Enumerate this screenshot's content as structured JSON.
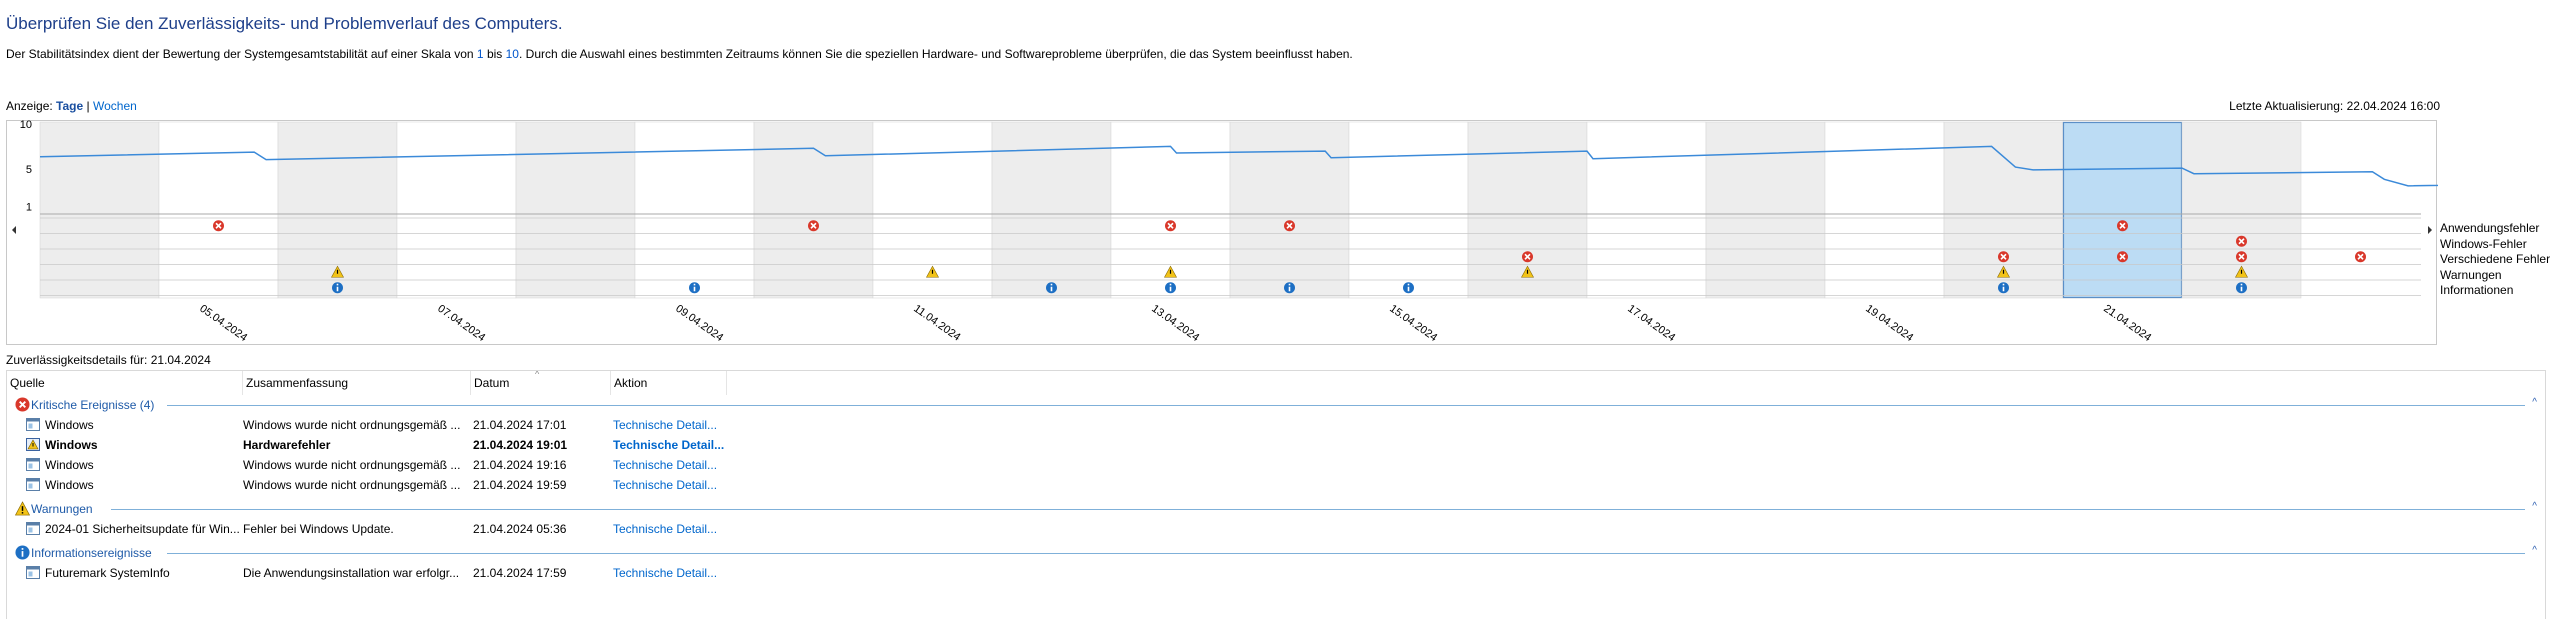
{
  "page": {
    "title": "Überprüfen Sie den Zuverlässigkeits- und Problemverlauf des Computers.",
    "description_before": "Der Stabilitätsindex dient der Bewertung der Systemgesamtstabilität auf einer Skala von ",
    "description_n1": "1",
    "description_mid": " bis ",
    "description_n2": "10",
    "description_after": ". Durch die Auswahl eines bestimmten Zeitraums können Sie die speziellen Hardware- und Softwareprobleme überprüfen, die das System beeinflusst haben.",
    "view_label": "Anzeige:",
    "view_days": "Tage",
    "view_sep": "|",
    "view_weeks": "Wochen",
    "last_update": "Letzte Aktualisierung: 22.04.2024 16:00"
  },
  "chart_data": {
    "type": "line",
    "title": "",
    "y_ticks": [
      "10",
      "5",
      "1"
    ],
    "ylim": [
      0,
      10
    ],
    "x_labels": [
      "05.04.2024",
      "07.04.2024",
      "09.04.2024",
      "11.04.2024",
      "13.04.2024",
      "15.04.2024",
      "17.04.2024",
      "19.04.2024",
      "21.04.2024"
    ],
    "days": [
      "04.04.2024",
      "05.04.2024",
      "06.04.2024",
      "07.04.2024",
      "08.04.2024",
      "09.04.2024",
      "10.04.2024",
      "11.04.2024",
      "12.04.2024",
      "13.04.2024",
      "14.04.2024",
      "15.04.2024",
      "16.04.2024",
      "17.04.2024",
      "18.04.2024",
      "19.04.2024",
      "20.04.2024",
      "21.04.2024",
      "22.04.2024"
    ],
    "selected_day": "21.04.2024",
    "series": [
      {
        "points": [
          [
            0,
            6.3
          ],
          [
            1.8,
            6.8
          ],
          [
            1.9,
            6.0
          ],
          [
            6.5,
            7.2
          ],
          [
            6.6,
            6.4
          ],
          [
            9.5,
            7.4
          ],
          [
            9.55,
            6.7
          ],
          [
            10.8,
            6.9
          ],
          [
            10.85,
            6.2
          ],
          [
            13.0,
            6.9
          ],
          [
            13.05,
            6.1
          ],
          [
            16.4,
            7.4
          ],
          [
            16.6,
            5.2
          ],
          [
            16.75,
            4.9
          ],
          [
            18.0,
            5.1
          ],
          [
            18.1,
            4.5
          ],
          [
            19.6,
            4.7
          ],
          [
            19.7,
            3.9
          ],
          [
            19.9,
            3.2
          ],
          [
            21.5,
            3.6
          ]
        ],
        "color": "#3b8ad9"
      }
    ],
    "categories": [
      "Anwendungsfehler",
      "Windows-Fehler",
      "Verschiedene Fehler",
      "Warnungen",
      "Informationen"
    ],
    "events": {
      "Anwendungsfehler": [
        1,
        6,
        9,
        10,
        17
      ],
      "Windows-Fehler": [
        18
      ],
      "Verschiedene Fehler": [
        12,
        16,
        17,
        18,
        19
      ],
      "Warnungen": [
        2,
        7,
        9,
        12,
        16,
        18
      ],
      "Informationen": [
        2,
        5,
        8,
        9,
        10,
        11,
        16,
        18
      ]
    }
  },
  "details": {
    "title": "Zuverlässigkeitsdetails für: 21.04.2024",
    "columns": [
      "Quelle",
      "Zusammenfassung",
      "Datum",
      "Aktion"
    ],
    "groups": [
      {
        "title": "Kritische Ereignisse (4)",
        "icon": "error-icon",
        "rows": [
          {
            "source": "Windows",
            "summary": "Windows wurde nicht ordnungsgemäß ...",
            "date": "21.04.2024 17:01",
            "action": "Technische Detail...",
            "bold": false
          },
          {
            "source": "Windows",
            "summary": "Hardwarefehler",
            "date": "21.04.2024 19:01",
            "action": "Technische Detail...",
            "bold": true
          },
          {
            "source": "Windows",
            "summary": "Windows wurde nicht ordnungsgemäß ...",
            "date": "21.04.2024 19:16",
            "action": "Technische Detail...",
            "bold": false
          },
          {
            "source": "Windows",
            "summary": "Windows wurde nicht ordnungsgemäß ...",
            "date": "21.04.2024 19:59",
            "action": "Technische Detail...",
            "bold": false
          }
        ]
      },
      {
        "title": "Warnungen",
        "icon": "warning-icon",
        "rows": [
          {
            "source": "2024-01 Sicherheitsupdate für Win...",
            "summary": "Fehler bei Windows Update.",
            "date": "21.04.2024 05:36",
            "action": "Technische Detail...",
            "bold": false
          }
        ]
      },
      {
        "title": "Informationsereignisse",
        "icon": "info-icon",
        "rows": [
          {
            "source": "Futuremark SystemInfo",
            "summary": "Die Anwendungsinstallation war erfolgr...",
            "date": "21.04.2024 17:59",
            "action": "Technische Detail...",
            "bold": false
          }
        ]
      }
    ]
  },
  "colors": {
    "title": "#1e3f8a",
    "link": "#0066cc",
    "line": "#3b8ad9",
    "selection": "#bcdcf4",
    "error": "#d9382b",
    "warning": "#f2c318",
    "info": "#1d6fc4",
    "shade": "#ededed"
  }
}
